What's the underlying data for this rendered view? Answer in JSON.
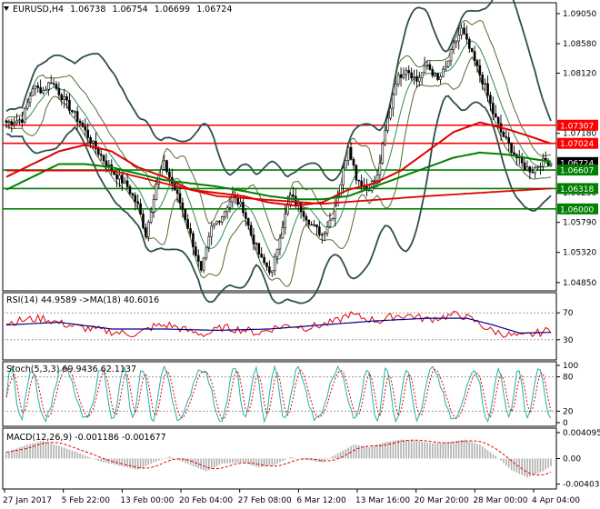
{
  "chart_data": {
    "type": "candlestick",
    "symbol": "EURUSD,H4",
    "header_values": [
      "1.06738",
      "1.06754",
      "1.06699",
      "1.06724"
    ],
    "main": {
      "ylim": [
        1.0472,
        1.0922
      ],
      "yticks": [
        "1.09050",
        "1.08580",
        "1.08120",
        "1.07180",
        "1.06250",
        "1.05790",
        "1.05320",
        "1.04850"
      ],
      "price_tags": [
        {
          "label": "1.07307",
          "value": 1.07307,
          "color": "#ff0000",
          "text": "#ffffff"
        },
        {
          "label": "1.07024",
          "value": 1.07024,
          "color": "#ff0000",
          "text": "#ffffff"
        },
        {
          "label": "1.06724",
          "value": 1.06724,
          "color": "#000000",
          "text": "#ffffff"
        },
        {
          "label": "1.06607",
          "value": 1.06607,
          "color": "#008000",
          "text": "#ffffff"
        },
        {
          "label": "1.06318",
          "value": 1.06318,
          "color": "#008000",
          "text": "#ffffff"
        },
        {
          "label": "1.06000",
          "value": 1.06,
          "color": "#008000",
          "text": "#ffffff"
        }
      ],
      "hlines": [
        {
          "value": 1.07307,
          "color": "#ff0000"
        },
        {
          "value": 1.07024,
          "color": "#ff0000"
        },
        {
          "value": 1.06607,
          "color": "#008000"
        },
        {
          "value": 1.06318,
          "color": "#008000"
        },
        {
          "value": 1.06,
          "color": "#008000"
        }
      ],
      "close_keypoints": [
        [
          0,
          1.0735
        ],
        [
          6,
          1.074
        ],
        [
          10,
          1.079
        ],
        [
          14,
          1.0785
        ],
        [
          17,
          1.08
        ],
        [
          22,
          1.077
        ],
        [
          28,
          1.0735
        ],
        [
          33,
          1.07
        ],
        [
          40,
          1.066
        ],
        [
          46,
          1.0635
        ],
        [
          50,
          1.0605
        ],
        [
          53,
          1.056
        ],
        [
          57,
          1.064
        ],
        [
          60,
          1.067
        ],
        [
          63,
          1.064
        ],
        [
          67,
          1.06
        ],
        [
          71,
          1.0545
        ],
        [
          74,
          1.05
        ],
        [
          78,
          1.057
        ],
        [
          82,
          1.059
        ],
        [
          86,
          1.062
        ],
        [
          90,
          1.06
        ],
        [
          93,
          1.056
        ],
        [
          97,
          1.052
        ],
        [
          101,
          1.05
        ],
        [
          104,
          1.056
        ],
        [
          108,
          1.062
        ],
        [
          112,
          1.06
        ],
        [
          116,
          1.0575
        ],
        [
          120,
          1.056
        ],
        [
          124,
          1.059
        ],
        [
          127,
          1.064
        ],
        [
          130,
          1.07
        ],
        [
          133,
          1.065
        ],
        [
          137,
          1.063
        ],
        [
          141,
          1.065
        ],
        [
          144,
          1.072
        ],
        [
          148,
          1.08
        ],
        [
          152,
          1.082
        ],
        [
          156,
          1.08
        ],
        [
          160,
          1.0825
        ],
        [
          164,
          1.08
        ],
        [
          167,
          1.082
        ],
        [
          170,
          1.0855
        ],
        [
          173,
          1.088
        ],
        [
          176,
          1.085
        ],
        [
          179,
          1.082
        ],
        [
          182,
          1.079
        ],
        [
          185,
          1.075
        ],
        [
          188,
          1.072
        ],
        [
          191,
          1.07
        ],
        [
          194,
          1.068
        ],
        [
          197,
          1.0665
        ],
        [
          200,
          1.066
        ],
        [
          203,
          1.0672
        ],
        [
          205,
          1.0675
        ],
        [
          207,
          1.0672
        ]
      ],
      "ma_red_keypoints": [
        [
          0,
          1.065
        ],
        [
          10,
          1.067
        ],
        [
          20,
          1.069
        ],
        [
          30,
          1.07
        ],
        [
          40,
          1.069
        ],
        [
          50,
          1.0665
        ],
        [
          60,
          1.065
        ],
        [
          70,
          1.063
        ],
        [
          80,
          1.0625
        ],
        [
          90,
          1.062
        ],
        [
          100,
          1.061
        ],
        [
          110,
          1.0605
        ],
        [
          120,
          1.061
        ],
        [
          130,
          1.063
        ],
        [
          140,
          1.064
        ],
        [
          150,
          1.066
        ],
        [
          160,
          1.069
        ],
        [
          170,
          1.072
        ],
        [
          180,
          1.0735
        ],
        [
          190,
          1.0725
        ],
        [
          200,
          1.0712
        ],
        [
          207,
          1.0702
        ]
      ],
      "ma_green_keypoints": [
        [
          0,
          1.063
        ],
        [
          10,
          1.065
        ],
        [
          20,
          1.067
        ],
        [
          30,
          1.067
        ],
        [
          40,
          1.0665
        ],
        [
          50,
          1.0655
        ],
        [
          60,
          1.0645
        ],
        [
          70,
          1.064
        ],
        [
          80,
          1.0635
        ],
        [
          90,
          1.0628
        ],
        [
          100,
          1.062
        ],
        [
          110,
          1.0615
        ],
        [
          120,
          1.0615
        ],
        [
          130,
          1.062
        ],
        [
          140,
          1.0635
        ],
        [
          150,
          1.065
        ],
        [
          160,
          1.0665
        ],
        [
          170,
          1.068
        ],
        [
          180,
          1.0688
        ],
        [
          190,
          1.0685
        ],
        [
          200,
          1.0678
        ],
        [
          207,
          1.0674
        ]
      ],
      "ma_red_long_keypoints": [
        [
          0,
          1.066
        ],
        [
          40,
          1.066
        ],
        [
          80,
          1.062
        ],
        [
          120,
          1.0608
        ],
        [
          160,
          1.062
        ],
        [
          207,
          1.0632
        ]
      ]
    },
    "rsi": {
      "label": "RSI(14) 44.9589  ->MA(18) 40.6016",
      "ylim": [
        0,
        100
      ],
      "yticks": [
        "70",
        "30"
      ],
      "keypoints": [
        [
          0,
          55
        ],
        [
          8,
          60
        ],
        [
          14,
          62
        ],
        [
          20,
          55
        ],
        [
          28,
          48
        ],
        [
          36,
          44
        ],
        [
          44,
          40
        ],
        [
          50,
          38
        ],
        [
          56,
          50
        ],
        [
          62,
          52
        ],
        [
          70,
          42
        ],
        [
          76,
          38
        ],
        [
          82,
          48
        ],
        [
          90,
          45
        ],
        [
          96,
          40
        ],
        [
          102,
          48
        ],
        [
          108,
          52
        ],
        [
          114,
          48
        ],
        [
          120,
          52
        ],
        [
          126,
          58
        ],
        [
          130,
          68
        ],
        [
          136,
          62
        ],
        [
          142,
          58
        ],
        [
          148,
          66
        ],
        [
          154,
          66
        ],
        [
          160,
          60
        ],
        [
          166,
          64
        ],
        [
          172,
          68
        ],
        [
          178,
          58
        ],
        [
          184,
          44
        ],
        [
          190,
          38
        ],
        [
          196,
          34
        ],
        [
          202,
          40
        ],
        [
          207,
          45
        ]
      ],
      "ma_keypoints": [
        [
          0,
          52
        ],
        [
          20,
          56
        ],
        [
          40,
          46
        ],
        [
          60,
          46
        ],
        [
          80,
          44
        ],
        [
          100,
          46
        ],
        [
          120,
          52
        ],
        [
          140,
          58
        ],
        [
          160,
          62
        ],
        [
          175,
          62
        ],
        [
          185,
          52
        ],
        [
          195,
          40
        ],
        [
          207,
          41
        ]
      ]
    },
    "stoch": {
      "label": "Stoch(5,3,3) 69.9436 62.1137",
      "ylim": [
        0,
        100
      ],
      "yticks": [
        "100",
        "80",
        "20",
        "0"
      ]
    },
    "macd": {
      "label": "MACD(12,26,9) -0.001186 -0.001677",
      "ylim": [
        -0.0048,
        0.0048
      ],
      "yticks": [
        "0.004095",
        "0.00",
        "-0.004033"
      ],
      "keypoints": [
        [
          0,
          0.001
        ],
        [
          8,
          0.0022
        ],
        [
          14,
          0.0028
        ],
        [
          20,
          0.002
        ],
        [
          28,
          0.0008
        ],
        [
          36,
          -0.0005
        ],
        [
          44,
          -0.0012
        ],
        [
          50,
          -0.0018
        ],
        [
          56,
          -0.0006
        ],
        [
          62,
          0.0003
        ],
        [
          70,
          -0.001
        ],
        [
          76,
          -0.002
        ],
        [
          82,
          -0.0008
        ],
        [
          90,
          -0.0006
        ],
        [
          96,
          -0.0014
        ],
        [
          102,
          -0.001
        ],
        [
          108,
          0.0002
        ],
        [
          114,
          -0.0002
        ],
        [
          120,
          -0.0006
        ],
        [
          126,
          0.0008
        ],
        [
          132,
          0.0022
        ],
        [
          138,
          0.0018
        ],
        [
          144,
          0.0026
        ],
        [
          150,
          0.003
        ],
        [
          156,
          0.0028
        ],
        [
          162,
          0.0024
        ],
        [
          168,
          0.0026
        ],
        [
          174,
          0.003
        ],
        [
          180,
          0.0022
        ],
        [
          186,
          0.0004
        ],
        [
          192,
          -0.0018
        ],
        [
          198,
          -0.003
        ],
        [
          204,
          -0.002
        ],
        [
          207,
          -0.0012
        ]
      ]
    },
    "xticks": [
      "27 Jan 2017",
      "5 Feb 22:00",
      "13 Feb 00:00",
      "20 Feb 04:00",
      "27 Feb 08:00",
      "6 Mar 12:00",
      "13 Mar 16:00",
      "20 Mar 20:00",
      "28 Mar 00:00",
      "4 Apr 04:00"
    ],
    "bars": 208
  }
}
